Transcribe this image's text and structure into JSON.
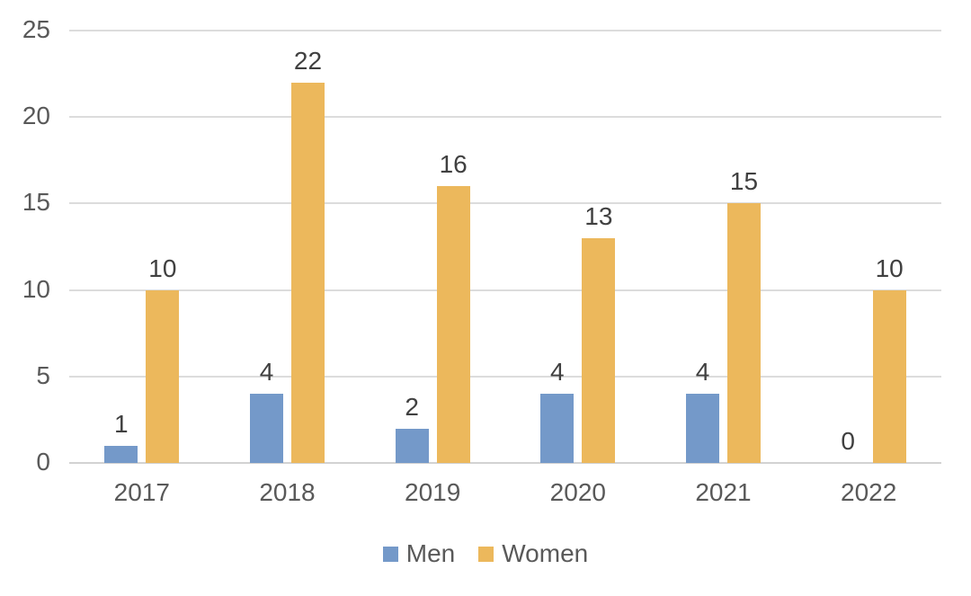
{
  "chart_data": {
    "type": "bar",
    "title": "",
    "xlabel": "",
    "ylabel": "",
    "categories": [
      "2017",
      "2018",
      "2019",
      "2020",
      "2021",
      "2022"
    ],
    "series": [
      {
        "name": "Men",
        "color": "#7499C9",
        "values": [
          1,
          4,
          2,
          4,
          4,
          0
        ]
      },
      {
        "name": "Women",
        "color": "#ECB85C",
        "values": [
          10,
          22,
          16,
          13,
          15,
          10
        ]
      }
    ],
    "ylim": [
      0,
      25
    ],
    "yticks": [
      0,
      5,
      10,
      15,
      20,
      25
    ],
    "grid": true,
    "data_labels": true,
    "legend_position": "bottom"
  },
  "colors": {
    "background": "#FFFFFF",
    "gridline": "#DCDCDC",
    "baseline": "#D2D2D2",
    "axis_text": "#595959",
    "data_label_text": "#404040",
    "legend_text": "#595959"
  }
}
